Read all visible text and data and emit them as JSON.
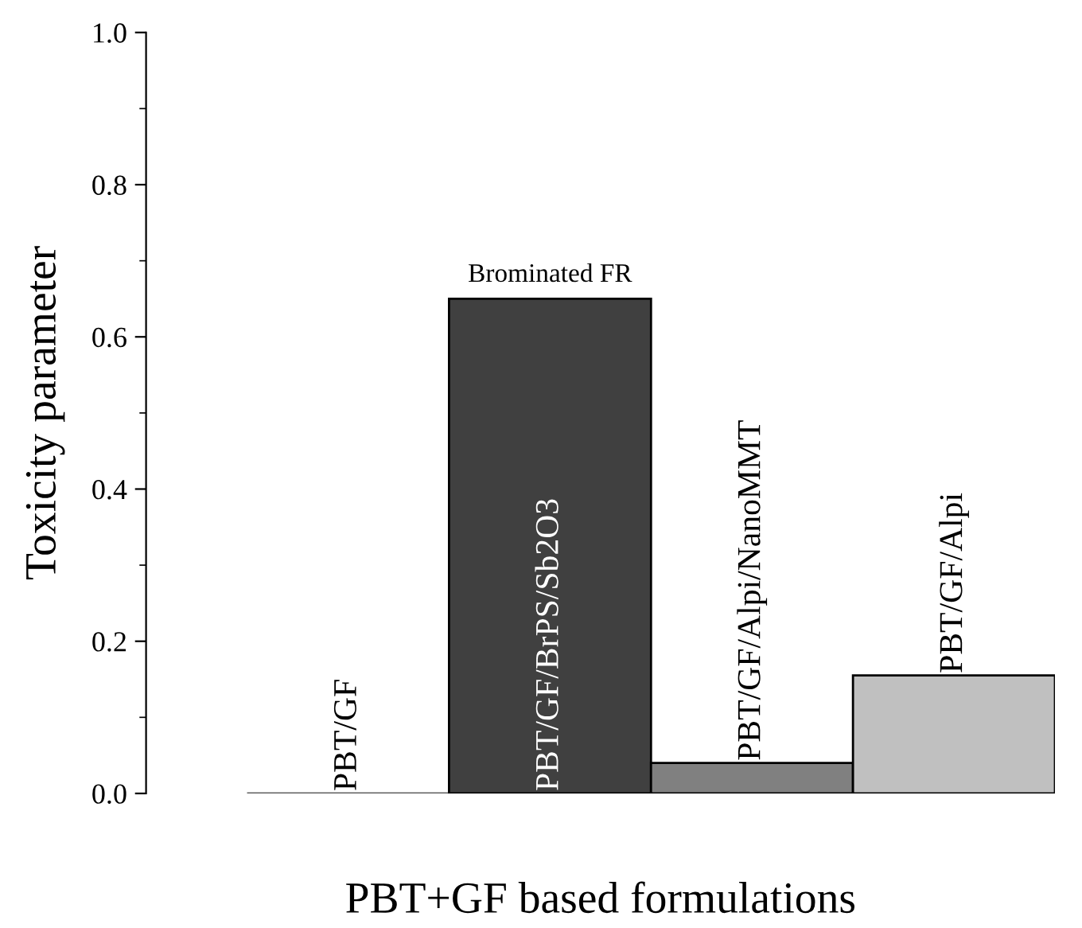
{
  "chart_data": {
    "type": "bar",
    "ylabel": "Toxicity parameter",
    "xlabel": "PBT+GF based formulations",
    "categories": [
      "PBT/GF",
      "PBT/GF/BrPS/Sb2O3",
      "PBT/GF/Alpi/NanoMMT",
      "PBT/GF/Alpi"
    ],
    "values": [
      0,
      0.65,
      0.04,
      0.155
    ],
    "colors": [
      "#ffffff",
      "#404040",
      "#808080",
      "#c0c0c0"
    ],
    "annotations": [
      {
        "text": "Brominated FR",
        "x": "PBT/GF/BrPS/Sb2O3",
        "y": 0.65
      }
    ],
    "ylim": [
      0,
      1.0
    ],
    "yticks": [
      {
        "value": 0,
        "label": "0.0"
      },
      0.2,
      0.4,
      0.6,
      0.8,
      {
        "value": 1,
        "label": "1.0"
      }
    ],
    "grid": false,
    "legend": false
  }
}
